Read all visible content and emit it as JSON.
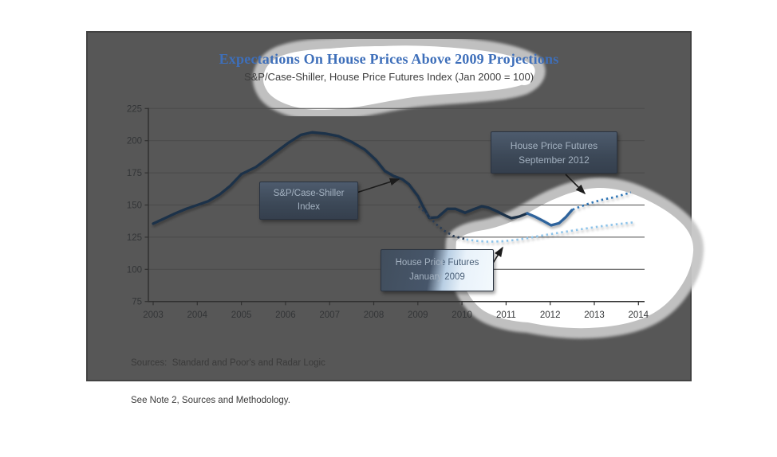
{
  "header": {
    "title": "Expectations On House Prices Above 2009 Projections",
    "subtitle": "S&P/Case-Shiller, House Price Futures Index (Jan 2000 = 100)",
    "title_color": "#3e6fba"
  },
  "callouts": {
    "case_shiller": {
      "line1": "S&P/Case-Shiller",
      "line2": "Index"
    },
    "sept2012": {
      "line1": "House Price Futures",
      "line2": "September 2012"
    },
    "jan2009": {
      "line1": "House Price Futures",
      "line2": "January 2009"
    }
  },
  "footer": {
    "source_line1": "Sources:  Standard and Poor's and Radar Logic",
    "source_line2": "See Note 2, Sources and Methodology."
  },
  "colors": {
    "slide_background": "#575757",
    "highlight_core": "#ffffff",
    "highlight_fringe": "#c6c6c6",
    "case_shiller_line": "#1e3048",
    "case_shiller_line_highlighted": "#2e639c",
    "futures_jan2009_dimmed": "#2a3c55",
    "futures_jan2009": "#8ec4ea",
    "futures_sept2012": "#2f74b5"
  },
  "chart_data": {
    "type": "line",
    "title": "Expectations On House Prices Above 2009 Projections",
    "subtitle": "S&P/Case-Shiller, House Price Futures Index (Jan 2000 = 100)",
    "grid": true,
    "x_axis": {
      "min": 2003,
      "max": 2014,
      "tick_labels": [
        "2003",
        "2004",
        "2005",
        "2006",
        "2007",
        "2008",
        "2009",
        "2010",
        "2011",
        "2012",
        "2013",
        "2014"
      ]
    },
    "y_axis": {
      "min": 75,
      "max": 225,
      "tick_labels": [
        "225",
        "200",
        "175",
        "150",
        "125",
        "100",
        "75"
      ],
      "tick_values": [
        225,
        200,
        175,
        150,
        125,
        100,
        75
      ]
    },
    "series": [
      {
        "name": "S&P/Case-Shiller Index",
        "style": "solid",
        "segments": [
          {
            "color": "#1e3048",
            "points": [
              [
                2003.0,
                135.5
              ],
              [
                2003.25,
                139.5
              ],
              [
                2003.5,
                143.5
              ],
              [
                2003.75,
                147
              ],
              [
                2004.0,
                150
              ],
              [
                2004.25,
                153
              ],
              [
                2004.5,
                158
              ],
              [
                2004.75,
                165
              ],
              [
                2005.0,
                174
              ],
              [
                2005.33,
                179.5
              ],
              [
                2005.7,
                189
              ],
              [
                2006.05,
                198
              ],
              [
                2006.35,
                204.5
              ],
              [
                2006.6,
                206.5
              ],
              [
                2006.9,
                205.5
              ],
              [
                2007.2,
                203.5
              ],
              [
                2007.5,
                199
              ],
              [
                2007.8,
                193
              ],
              [
                2008.05,
                185
              ],
              [
                2008.25,
                176.5
              ],
              [
                2008.45,
                172.5
              ],
              [
                2008.65,
                170
              ],
              [
                2008.8,
                166
              ],
              [
                2009.0,
                157
              ],
              [
                2009.1,
                150
              ],
              [
                2009.26,
                140
              ],
              [
                2009.45,
                140.5
              ],
              [
                2009.67,
                147
              ],
              [
                2009.85,
                147
              ],
              [
                2010.07,
                144
              ],
              [
                2010.25,
                146.5
              ],
              [
                2010.45,
                149
              ],
              [
                2010.6,
                148
              ],
              [
                2010.8,
                145
              ],
              [
                2011.0,
                141.5
              ],
              [
                2011.12,
                139.8
              ],
              [
                2011.3,
                141
              ],
              [
                2011.48,
                143.5
              ]
            ]
          },
          {
            "color": "#2e639c",
            "points": [
              [
                2011.48,
                143.5
              ],
              [
                2011.65,
                141
              ],
              [
                2011.85,
                137.5
              ],
              [
                2012.02,
                134.2
              ],
              [
                2012.2,
                135.8
              ],
              [
                2012.35,
                140.5
              ],
              [
                2012.49,
                146
              ]
            ]
          }
        ]
      },
      {
        "name": "House Price Futures January 2009",
        "style": "dotted",
        "segments": [
          {
            "color": "#2a3c55",
            "points": [
              [
                2009.02,
                149
              ],
              [
                2009.2,
                143
              ],
              [
                2009.4,
                135.5
              ],
              [
                2009.6,
                130
              ],
              [
                2009.8,
                126
              ],
              [
                2009.98,
                124.3
              ],
              [
                2010.1,
                123.2
              ]
            ]
          },
          {
            "color": "#8ec4ea",
            "points": [
              [
                2010.1,
                123.2
              ],
              [
                2010.35,
                122
              ],
              [
                2010.6,
                121.5
              ],
              [
                2010.9,
                121.8
              ],
              [
                2011.2,
                122.8
              ],
              [
                2011.5,
                124.3
              ],
              [
                2011.9,
                126.8
              ],
              [
                2012.3,
                129
              ],
              [
                2012.7,
                131.2
              ],
              [
                2013.1,
                133.2
              ],
              [
                2013.5,
                135
              ],
              [
                2013.9,
                136.6
              ]
            ]
          }
        ]
      },
      {
        "name": "House Price Futures September 2012",
        "style": "dotted",
        "segments": [
          {
            "color": "#2f74b5",
            "points": [
              [
                2012.51,
                146.5
              ],
              [
                2012.7,
                149
              ],
              [
                2012.91,
                151.5
              ],
              [
                2013.15,
                153.9
              ],
              [
                2013.45,
                156
              ],
              [
                2013.65,
                158
              ],
              [
                2013.83,
                159.8
              ]
            ]
          }
        ]
      }
    ]
  }
}
